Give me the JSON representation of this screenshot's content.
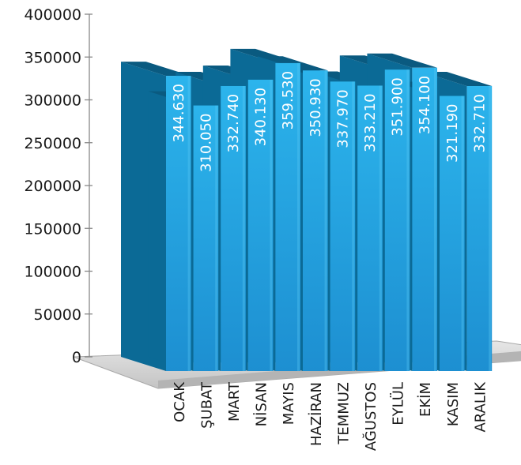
{
  "chart_data": {
    "type": "bar",
    "categories": [
      "OCAK",
      "ŞUBAT",
      "MART",
      "NİSAN",
      "MAYIS",
      "HAZİRAN",
      "TEMMUZ",
      "AĞUSTOS",
      "EYLÜL",
      "EKİM",
      "KASIM",
      "ARALIK"
    ],
    "values": [
      344630,
      310050,
      332740,
      340130,
      359530,
      350930,
      337970,
      333210,
      351900,
      354100,
      321190,
      332710
    ],
    "value_labels": [
      "344.630",
      "310.050",
      "332.740",
      "340.130",
      "359.530",
      "350.930",
      "337.970",
      "333.210",
      "351.900",
      "354.100",
      "321.190",
      "332.710"
    ],
    "yticks": [
      "0",
      "50000",
      "100000",
      "150000",
      "200000",
      "250000",
      "300000",
      "350000",
      "400000"
    ],
    "ylim": [
      0,
      400000
    ],
    "title": "",
    "xlabel": "",
    "ylabel": "",
    "grid": false,
    "style": "3d-bar",
    "colors": {
      "front_top": "#27aee8",
      "front_bottom": "#1f8fd0",
      "side": "#0b6a96",
      "top": "#0a5a80",
      "floor": "#cccccc",
      "floor_edge": "#a8a8a8",
      "axis": "#888888"
    }
  }
}
